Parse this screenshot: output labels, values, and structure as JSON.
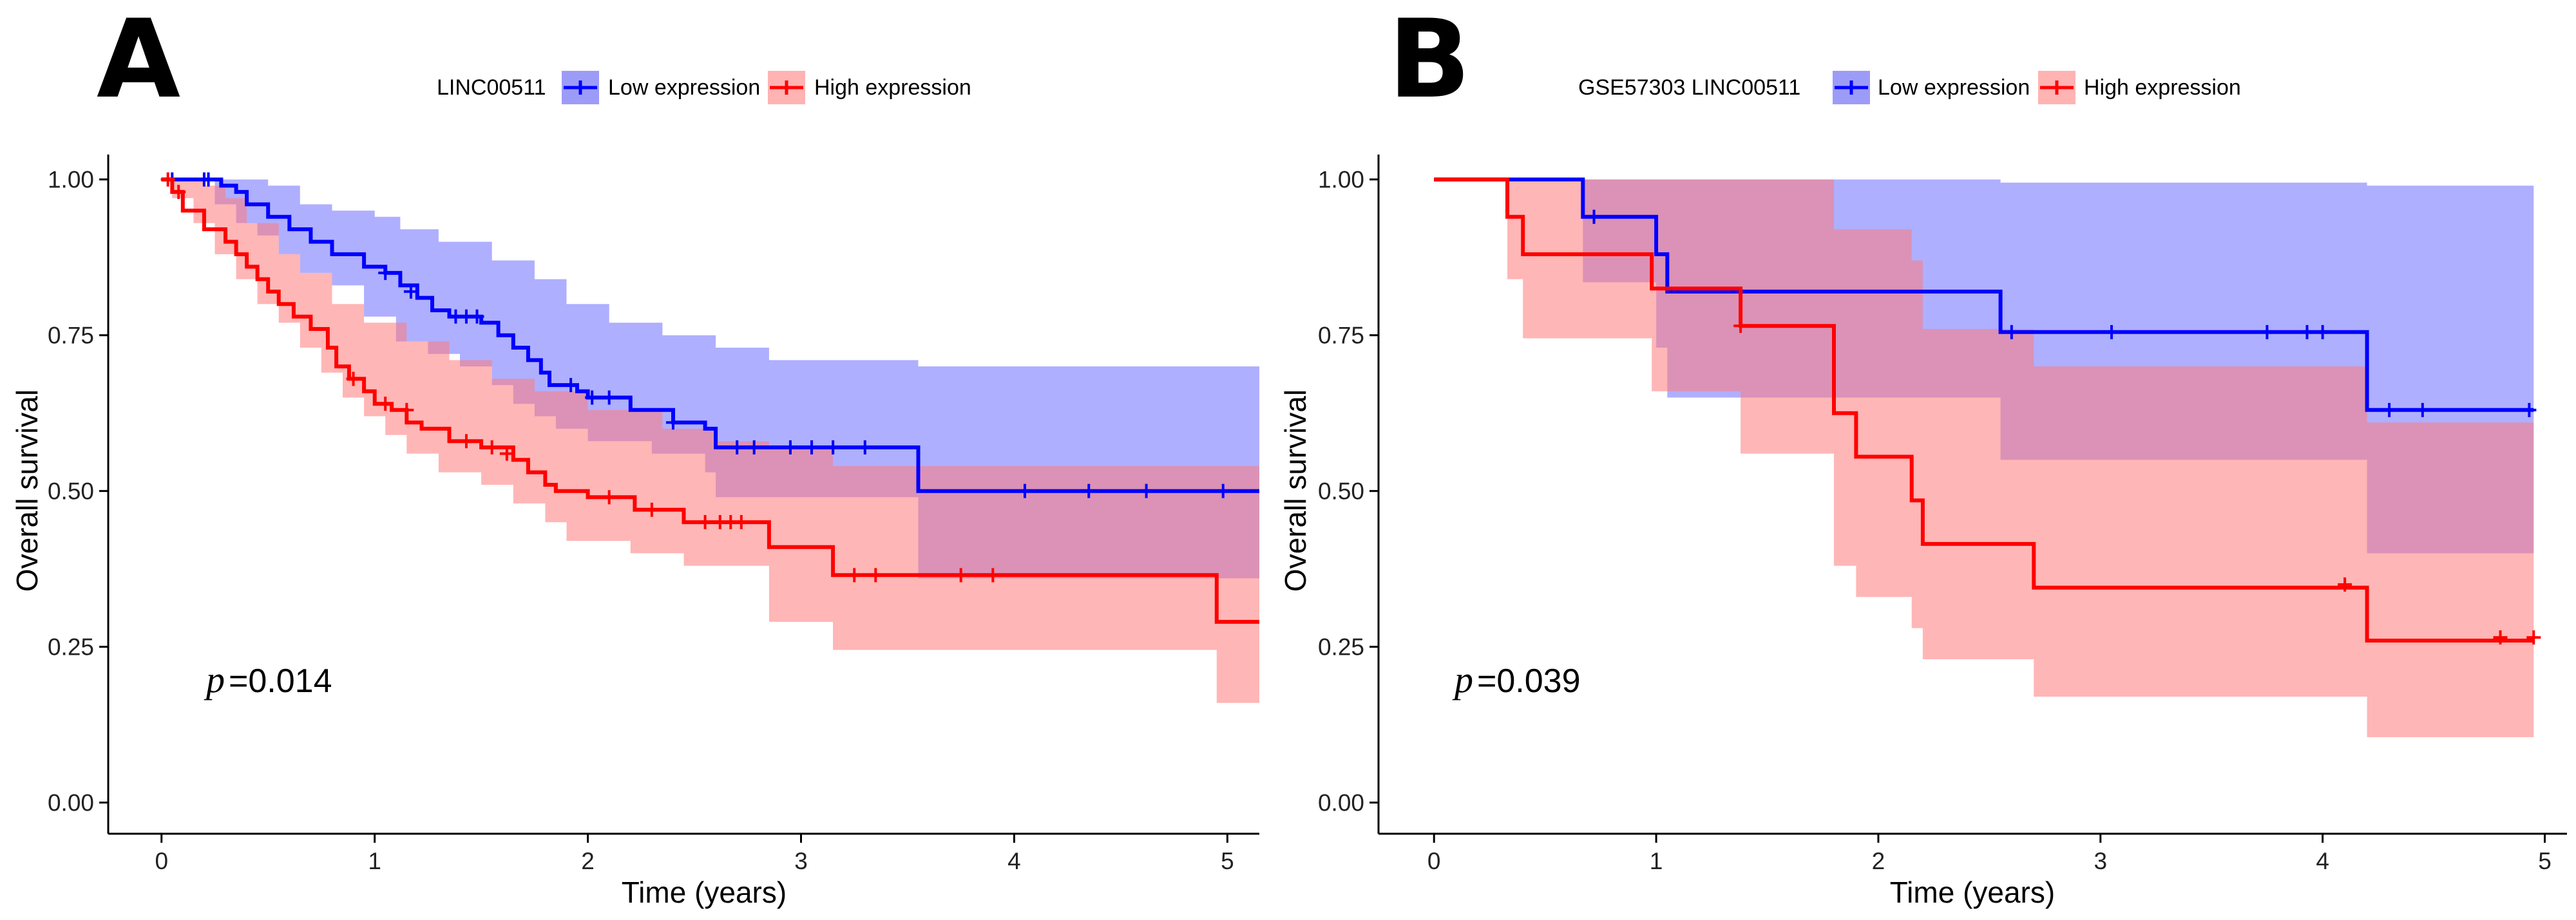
{
  "colors": {
    "low": "#0000ff",
    "high": "#ff0000",
    "low_band": "#6d6dff",
    "high_band": "#ff7a7a"
  },
  "chart_data": [
    {
      "panel": "A",
      "type": "line",
      "title": "",
      "legend_title": "LINC00511",
      "legend_position": "top-center",
      "xlabel": "Time (years)",
      "ylabel": "Overall survival",
      "xlim": [
        -0.25,
        5.15
      ],
      "ylim": [
        -0.05,
        1.04
      ],
      "xticks": [
        0,
        1,
        2,
        3,
        4,
        5
      ],
      "xtick_labels": [
        "0",
        "1",
        "2",
        "3",
        "4",
        "5"
      ],
      "yticks": [
        0,
        0.25,
        0.5,
        0.75,
        1.0
      ],
      "ytick_labels": [
        "0.00",
        "0.25",
        "0.50",
        "0.75",
        "1.00"
      ],
      "pvalue_prefix": "p",
      "pvalue_text": "=0.014",
      "series": [
        {
          "name": "Low expression",
          "key": "low",
          "steps": [
            [
              0,
              1.0
            ],
            [
              0.28,
              0.99
            ],
            [
              0.35,
              0.98
            ],
            [
              0.4,
              0.96
            ],
            [
              0.5,
              0.94
            ],
            [
              0.6,
              0.92
            ],
            [
              0.7,
              0.9
            ],
            [
              0.8,
              0.88
            ],
            [
              0.95,
              0.86
            ],
            [
              1.05,
              0.85
            ],
            [
              1.12,
              0.83
            ],
            [
              1.2,
              0.81
            ],
            [
              1.27,
              0.79
            ],
            [
              1.35,
              0.78
            ],
            [
              1.5,
              0.77
            ],
            [
              1.58,
              0.75
            ],
            [
              1.65,
              0.73
            ],
            [
              1.72,
              0.71
            ],
            [
              1.78,
              0.69
            ],
            [
              1.82,
              0.67
            ],
            [
              1.95,
              0.66
            ],
            [
              2.0,
              0.65
            ],
            [
              2.2,
              0.63
            ],
            [
              2.4,
              0.61
            ],
            [
              2.55,
              0.6
            ],
            [
              2.6,
              0.57
            ],
            [
              3.55,
              0.5
            ],
            [
              5.15,
              0.5
            ]
          ],
          "upper": [
            [
              0,
              1.0
            ],
            [
              0.5,
              0.99
            ],
            [
              0.65,
              0.96
            ],
            [
              0.8,
              0.95
            ],
            [
              1.0,
              0.94
            ],
            [
              1.12,
              0.92
            ],
            [
              1.3,
              0.9
            ],
            [
              1.55,
              0.87
            ],
            [
              1.75,
              0.84
            ],
            [
              1.9,
              0.8
            ],
            [
              2.1,
              0.77
            ],
            [
              2.35,
              0.75
            ],
            [
              2.6,
              0.73
            ],
            [
              2.85,
              0.71
            ],
            [
              3.55,
              0.7
            ],
            [
              5.15,
              0.7
            ]
          ],
          "lower": [
            [
              0,
              1.0
            ],
            [
              0.25,
              0.96
            ],
            [
              0.35,
              0.93
            ],
            [
              0.45,
              0.91
            ],
            [
              0.55,
              0.88
            ],
            [
              0.65,
              0.85
            ],
            [
              0.8,
              0.83
            ],
            [
              0.95,
              0.78
            ],
            [
              1.1,
              0.74
            ],
            [
              1.25,
              0.72
            ],
            [
              1.4,
              0.7
            ],
            [
              1.55,
              0.67
            ],
            [
              1.65,
              0.64
            ],
            [
              1.75,
              0.62
            ],
            [
              1.85,
              0.6
            ],
            [
              2.0,
              0.58
            ],
            [
              2.3,
              0.56
            ],
            [
              2.55,
              0.53
            ],
            [
              2.6,
              0.49
            ],
            [
              3.55,
              0.36
            ],
            [
              5.15,
              0.36
            ]
          ],
          "censors": [
            [
              0.05,
              1.0
            ],
            [
              0.2,
              1.0
            ],
            [
              0.22,
              1.0
            ],
            [
              1.05,
              0.85
            ],
            [
              1.17,
              0.82
            ],
            [
              1.38,
              0.78
            ],
            [
              1.43,
              0.78
            ],
            [
              1.48,
              0.78
            ],
            [
              1.92,
              0.67
            ],
            [
              2.02,
              0.65
            ],
            [
              2.1,
              0.65
            ],
            [
              2.4,
              0.61
            ],
            [
              2.7,
              0.57
            ],
            [
              2.78,
              0.57
            ],
            [
              2.95,
              0.57
            ],
            [
              3.05,
              0.57
            ],
            [
              3.15,
              0.57
            ],
            [
              3.3,
              0.57
            ],
            [
              4.05,
              0.5
            ],
            [
              4.35,
              0.5
            ],
            [
              4.62,
              0.5
            ],
            [
              4.98,
              0.5
            ]
          ]
        },
        {
          "name": "High expression",
          "key": "high",
          "steps": [
            [
              0,
              1.0
            ],
            [
              0.05,
              0.98
            ],
            [
              0.1,
              0.95
            ],
            [
              0.2,
              0.92
            ],
            [
              0.3,
              0.9
            ],
            [
              0.35,
              0.88
            ],
            [
              0.4,
              0.86
            ],
            [
              0.45,
              0.84
            ],
            [
              0.5,
              0.82
            ],
            [
              0.55,
              0.8
            ],
            [
              0.62,
              0.78
            ],
            [
              0.7,
              0.76
            ],
            [
              0.78,
              0.73
            ],
            [
              0.82,
              0.7
            ],
            [
              0.88,
              0.68
            ],
            [
              0.95,
              0.66
            ],
            [
              1.0,
              0.64
            ],
            [
              1.08,
              0.63
            ],
            [
              1.15,
              0.61
            ],
            [
              1.22,
              0.6
            ],
            [
              1.35,
              0.58
            ],
            [
              1.5,
              0.57
            ],
            [
              1.65,
              0.55
            ],
            [
              1.72,
              0.53
            ],
            [
              1.8,
              0.51
            ],
            [
              1.85,
              0.5
            ],
            [
              2.0,
              0.49
            ],
            [
              2.22,
              0.47
            ],
            [
              2.45,
              0.45
            ],
            [
              2.85,
              0.41
            ],
            [
              3.15,
              0.365
            ],
            [
              4.95,
              0.29
            ],
            [
              5.15,
              0.29
            ]
          ],
          "upper": [
            [
              0,
              1.0
            ],
            [
              0.2,
              0.99
            ],
            [
              0.3,
              0.97
            ],
            [
              0.4,
              0.93
            ],
            [
              0.55,
              0.88
            ],
            [
              0.65,
              0.85
            ],
            [
              0.8,
              0.8
            ],
            [
              0.95,
              0.77
            ],
            [
              1.15,
              0.74
            ],
            [
              1.35,
              0.71
            ],
            [
              1.55,
              0.68
            ],
            [
              1.75,
              0.66
            ],
            [
              2.0,
              0.63
            ],
            [
              2.35,
              0.6
            ],
            [
              2.6,
              0.58
            ],
            [
              2.85,
              0.57
            ],
            [
              3.15,
              0.54
            ],
            [
              3.55,
              0.54
            ],
            [
              5.15,
              0.54
            ]
          ],
          "lower": [
            [
              0,
              1.0
            ],
            [
              0.05,
              0.97
            ],
            [
              0.15,
              0.93
            ],
            [
              0.25,
              0.88
            ],
            [
              0.35,
              0.84
            ],
            [
              0.45,
              0.8
            ],
            [
              0.55,
              0.77
            ],
            [
              0.65,
              0.73
            ],
            [
              0.75,
              0.69
            ],
            [
              0.85,
              0.65
            ],
            [
              0.95,
              0.62
            ],
            [
              1.05,
              0.59
            ],
            [
              1.15,
              0.56
            ],
            [
              1.3,
              0.53
            ],
            [
              1.5,
              0.51
            ],
            [
              1.65,
              0.48
            ],
            [
              1.8,
              0.45
            ],
            [
              1.9,
              0.42
            ],
            [
              2.2,
              0.4
            ],
            [
              2.45,
              0.38
            ],
            [
              2.85,
              0.29
            ],
            [
              3.15,
              0.245
            ],
            [
              4.95,
              0.16
            ],
            [
              5.15,
              0.16
            ]
          ],
          "censors": [
            [
              0.03,
              1.0
            ],
            [
              0.08,
              0.98
            ],
            [
              0.9,
              0.68
            ],
            [
              1.05,
              0.64
            ],
            [
              1.15,
              0.63
            ],
            [
              1.43,
              0.58
            ],
            [
              1.55,
              0.57
            ],
            [
              1.62,
              0.56
            ],
            [
              2.1,
              0.49
            ],
            [
              2.3,
              0.47
            ],
            [
              2.55,
              0.45
            ],
            [
              2.62,
              0.45
            ],
            [
              2.67,
              0.45
            ],
            [
              2.72,
              0.45
            ],
            [
              3.25,
              0.365
            ],
            [
              3.35,
              0.365
            ],
            [
              3.75,
              0.365
            ],
            [
              3.9,
              0.365
            ]
          ]
        }
      ]
    },
    {
      "panel": "B",
      "type": "line",
      "title": "",
      "legend_title": "GSE57303   LINC00511",
      "legend_position": "top-center",
      "xlabel": "Time (years)",
      "ylabel": "Overall survival",
      "xlim": [
        -0.25,
        5.1
      ],
      "ylim": [
        -0.05,
        1.04
      ],
      "xticks": [
        0,
        1,
        2,
        3,
        4,
        5
      ],
      "xtick_labels": [
        "0",
        "1",
        "2",
        "3",
        "4",
        "5"
      ],
      "yticks": [
        0,
        0.25,
        0.5,
        0.75,
        1.0
      ],
      "ytick_labels": [
        "0.00",
        "0.25",
        "0.50",
        "0.75",
        "1.00"
      ],
      "pvalue_prefix": "p",
      "pvalue_text": "=0.039",
      "series": [
        {
          "name": "Low expression",
          "key": "low",
          "steps": [
            [
              0,
              1.0
            ],
            [
              0.67,
              0.94
            ],
            [
              1.0,
              0.88
            ],
            [
              1.05,
              0.82
            ],
            [
              2.55,
              0.755
            ],
            [
              4.2,
              0.63
            ],
            [
              4.95,
              0.63
            ]
          ],
          "upper": [
            [
              0,
              1.0
            ],
            [
              0.67,
              1.0
            ],
            [
              1.0,
              1.0
            ],
            [
              1.05,
              1.0
            ],
            [
              2.55,
              1.0
            ],
            [
              2.55,
              0.995
            ],
            [
              4.2,
              0.99
            ],
            [
              4.95,
              0.99
            ]
          ],
          "lower": [
            [
              0,
              1.0
            ],
            [
              0.67,
              0.835
            ],
            [
              1.0,
              0.73
            ],
            [
              1.05,
              0.65
            ],
            [
              2.55,
              0.55
            ],
            [
              4.2,
              0.4
            ],
            [
              4.95,
              0.4
            ]
          ],
          "censors": [
            [
              0.72,
              0.94
            ],
            [
              2.6,
              0.755
            ],
            [
              3.05,
              0.755
            ],
            [
              3.75,
              0.755
            ],
            [
              3.93,
              0.755
            ],
            [
              4.0,
              0.755
            ],
            [
              4.3,
              0.63
            ],
            [
              4.45,
              0.63
            ],
            [
              4.93,
              0.63
            ]
          ]
        },
        {
          "name": "High expression",
          "key": "high",
          "steps": [
            [
              0,
              1.0
            ],
            [
              0.33,
              0.94
            ],
            [
              0.4,
              0.88
            ],
            [
              0.98,
              0.825
            ],
            [
              1.38,
              0.765
            ],
            [
              1.8,
              0.625
            ],
            [
              1.9,
              0.555
            ],
            [
              2.15,
              0.485
            ],
            [
              2.2,
              0.415
            ],
            [
              2.7,
              0.345
            ],
            [
              4.2,
              0.26
            ],
            [
              4.95,
              0.26
            ]
          ],
          "upper": [
            [
              0,
              1.0
            ],
            [
              0.33,
              1.0
            ],
            [
              1.38,
              1.0
            ],
            [
              1.8,
              0.92
            ],
            [
              2.15,
              0.87
            ],
            [
              2.2,
              0.76
            ],
            [
              2.7,
              0.7
            ],
            [
              4.2,
              0.61
            ],
            [
              4.95,
              0.61
            ]
          ],
          "lower": [
            [
              0,
              1.0
            ],
            [
              0.33,
              0.84
            ],
            [
              0.4,
              0.745
            ],
            [
              0.98,
              0.66
            ],
            [
              1.38,
              0.56
            ],
            [
              1.8,
              0.38
            ],
            [
              1.9,
              0.33
            ],
            [
              2.15,
              0.28
            ],
            [
              2.2,
              0.23
            ],
            [
              2.7,
              0.17
            ],
            [
              4.2,
              0.105
            ],
            [
              4.95,
              0.105
            ]
          ],
          "censors": [
            [
              1.38,
              0.765
            ],
            [
              4.1,
              0.35
            ],
            [
              4.8,
              0.265
            ],
            [
              4.95,
              0.265
            ]
          ]
        }
      ]
    }
  ]
}
